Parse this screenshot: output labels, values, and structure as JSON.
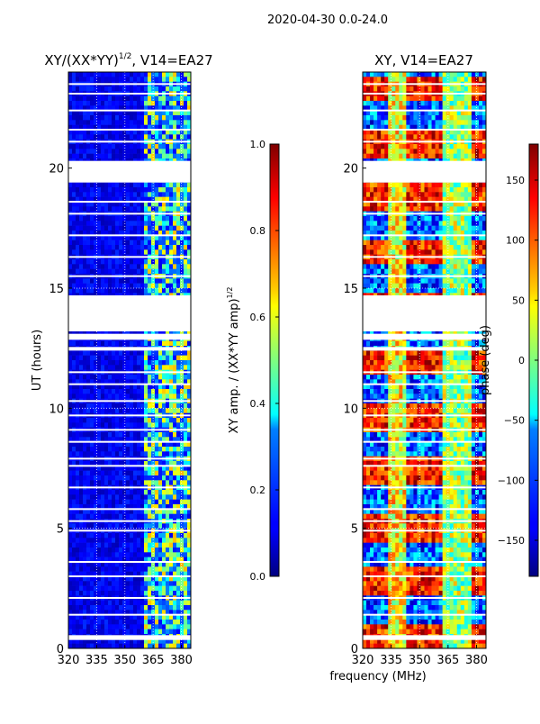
{
  "suptitle": "2020-04-30 0.0-24.0",
  "shared_xlabel": "frequency (MHz)",
  "chart_data": [
    {
      "type": "heatmap",
      "title_main": "XY/(XX*YY)",
      "title_sup": "1/2",
      "title_tail": ", V14=EA27",
      "xlabel": "frequency (MHz)",
      "ylabel": "UT (hours)",
      "xlim": [
        320,
        385
      ],
      "ylim": [
        0,
        24
      ],
      "xticks": [
        320,
        335,
        350,
        365,
        380
      ],
      "yticks": [
        0,
        5,
        10,
        15,
        20
      ],
      "grid": true,
      "colormap": "jet",
      "colorbar": {
        "label_main": "XY amp. / (XX*YY amp)",
        "label_sup": "1/2",
        "min": 0.0,
        "max": 1.0,
        "ticks": [
          0.0,
          0.2,
          0.4,
          0.6,
          0.8,
          1.0
        ],
        "tick_labels": [
          "0.0",
          "0.2",
          "0.4",
          "0.6",
          "0.8",
          "1.0"
        ]
      },
      "no_data_gaps_hours": [
        [
          0.35,
          0.55
        ],
        [
          12.85,
          13.1
        ],
        [
          12.4,
          12.55
        ],
        [
          13.2,
          14.7
        ],
        [
          19.4,
          20.3
        ]
      ],
      "band_structure": [
        {
          "from_mhz": 320,
          "to_mhz": 360,
          "level": "low"
        },
        {
          "from_mhz": 360,
          "to_mhz": 382,
          "level": "mixed"
        }
      ]
    },
    {
      "type": "heatmap",
      "title_main": "XY, V14=EA27",
      "xlabel": "frequency (MHz)",
      "ylabel": "phase (deg)",
      "xlim": [
        320,
        385
      ],
      "ylim": [
        0,
        24
      ],
      "xticks": [
        320,
        335,
        350,
        365,
        380
      ],
      "yticks": [
        0,
        5,
        10,
        15,
        20
      ],
      "grid": true,
      "colormap": "jet",
      "colorbar": {
        "label_main": "phase (deg)",
        "min": -180,
        "max": 180,
        "ticks": [
          -150,
          -100,
          -50,
          0,
          50,
          100,
          150
        ],
        "tick_labels": [
          "−150",
          "−100",
          "−50",
          "0",
          "50",
          "100",
          "150"
        ]
      },
      "no_data_gaps_hours": [
        [
          0.35,
          0.55
        ],
        [
          12.85,
          13.1
        ],
        [
          12.4,
          12.55
        ],
        [
          13.2,
          14.7
        ],
        [
          19.4,
          20.3
        ]
      ]
    }
  ]
}
